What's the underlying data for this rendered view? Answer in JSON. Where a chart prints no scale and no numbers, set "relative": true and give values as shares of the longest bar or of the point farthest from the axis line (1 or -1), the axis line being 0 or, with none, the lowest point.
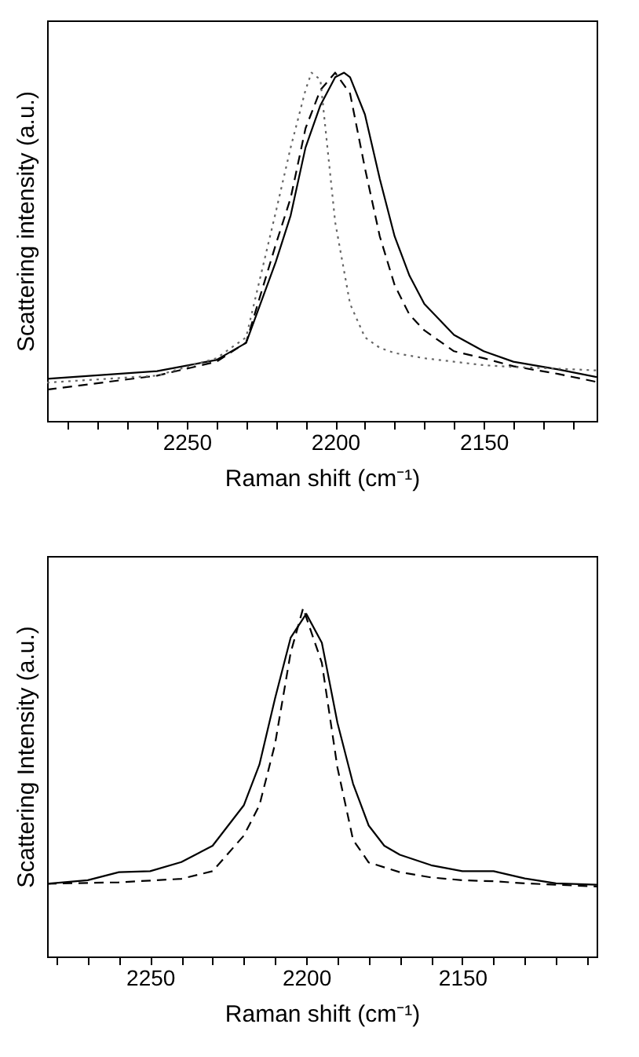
{
  "chart_data": [
    {
      "type": "line",
      "relative": true,
      "xlabel": "Raman shift (cm⁻¹)",
      "ylabel": "Scattering intensity  (a.u.)",
      "xlim": [
        2297,
        2112
      ],
      "xticks": [
        {
          "value": 2290,
          "label": null
        },
        {
          "value": 2280,
          "label": null
        },
        {
          "value": 2270,
          "label": null
        },
        {
          "value": 2260,
          "label": null
        },
        2250,
        {
          "value": 2240,
          "label": null
        },
        {
          "value": 2230,
          "label": null
        },
        {
          "value": 2220,
          "label": null
        },
        {
          "value": 2210,
          "label": null
        },
        2200,
        {
          "value": 2190,
          "label": null
        },
        {
          "value": 2180,
          "label": null
        },
        {
          "value": 2170,
          "label": null
        },
        {
          "value": 2160,
          "label": null
        },
        2150,
        {
          "value": 2140,
          "label": null
        },
        {
          "value": 2130,
          "label": null
        },
        {
          "value": 2120,
          "label": null
        }
      ],
      "grid": false,
      "series": [
        {
          "color": "#000000",
          "line_style": "solid",
          "x": [
            2297,
            2260,
            2240,
            2230,
            2220,
            2215,
            2210,
            2205,
            2200,
            2197,
            2195,
            2190,
            2185,
            2180,
            2175,
            2170,
            2160,
            2150,
            2140,
            2125,
            2112
          ],
          "values": [
            0.121,
            0.143,
            0.175,
            0.224,
            0.457,
            0.59,
            0.785,
            0.906,
            0.987,
            1,
            0.987,
            0.88,
            0.695,
            0.53,
            0.417,
            0.336,
            0.247,
            0.2,
            0.17,
            0.148,
            0.126
          ]
        },
        {
          "color": "#000000",
          "line_style": "dashed",
          "x": [
            2297,
            2260,
            2240,
            2230,
            2220,
            2215,
            2210,
            2205,
            2200,
            2195,
            2190,
            2185,
            2180,
            2175,
            2170,
            2160,
            2150,
            2140,
            2125,
            2112
          ],
          "values": [
            0.09,
            0.13,
            0.17,
            0.225,
            0.507,
            0.64,
            0.84,
            0.95,
            1,
            0.94,
            0.726,
            0.53,
            0.39,
            0.305,
            0.26,
            0.2,
            0.18,
            0.157,
            0.135,
            0.112
          ]
        },
        {
          "color": "#666666",
          "line_style": "dotted",
          "x": [
            2297,
            2260,
            2240,
            2230,
            2220,
            2215,
            2210,
            2208,
            2205,
            2200,
            2195,
            2190,
            2185,
            2180,
            2170,
            2160,
            2150,
            2140,
            2125,
            2112
          ],
          "values": [
            0.11,
            0.13,
            0.18,
            0.24,
            0.6,
            0.785,
            0.95,
            1,
            0.98,
            0.57,
            0.336,
            0.24,
            0.21,
            0.195,
            0.18,
            0.17,
            0.16,
            0.155,
            0.15,
            0.145
          ]
        }
      ]
    },
    {
      "type": "line",
      "relative": true,
      "xlabel": "Raman shift (cm⁻¹)",
      "ylabel": "Scattering Intensity  (a.u.)",
      "xlim": [
        2283,
        2107
      ],
      "xticks": [
        {
          "value": 2280,
          "label": null
        },
        {
          "value": 2270,
          "label": null
        },
        {
          "value": 2260,
          "label": null
        },
        2250,
        {
          "value": 2240,
          "label": null
        },
        {
          "value": 2230,
          "label": null
        },
        {
          "value": 2220,
          "label": null
        },
        {
          "value": 2210,
          "label": null
        },
        2200,
        {
          "value": 2190,
          "label": null
        },
        {
          "value": 2180,
          "label": null
        },
        {
          "value": 2170,
          "label": null
        },
        {
          "value": 2160,
          "label": null
        },
        2150,
        {
          "value": 2140,
          "label": null
        },
        {
          "value": 2130,
          "label": null
        },
        {
          "value": 2120,
          "label": null
        },
        {
          "value": 2110,
          "label": null
        }
      ],
      "grid": false,
      "series": [
        {
          "color": "#000000",
          "line_style": "solid",
          "x": [
            2283,
            2270,
            2260,
            2250,
            2240,
            2230,
            2220,
            2215,
            2210,
            2205,
            2200,
            2195,
            2190,
            2185,
            2180,
            2175,
            2170,
            2160,
            2150,
            2140,
            2130,
            2120,
            2107
          ],
          "values": [
            0.209,
            0.219,
            0.242,
            0.245,
            0.271,
            0.318,
            0.434,
            0.551,
            0.741,
            0.915,
            0.984,
            0.901,
            0.671,
            0.496,
            0.376,
            0.318,
            0.292,
            0.262,
            0.245,
            0.245,
            0.224,
            0.21,
            0.206
          ]
        },
        {
          "color": "#000000",
          "line_style": "dashed",
          "x": [
            2283,
            2260,
            2240,
            2230,
            2220,
            2215,
            2210,
            2205,
            2201,
            2195,
            2190,
            2185,
            2180,
            2170,
            2160,
            2150,
            2140,
            2130,
            2107
          ],
          "values": [
            0.209,
            0.213,
            0.223,
            0.245,
            0.347,
            0.434,
            0.61,
            0.872,
            1,
            0.843,
            0.542,
            0.335,
            0.27,
            0.242,
            0.227,
            0.219,
            0.216,
            0.21,
            0.201
          ]
        }
      ]
    }
  ]
}
